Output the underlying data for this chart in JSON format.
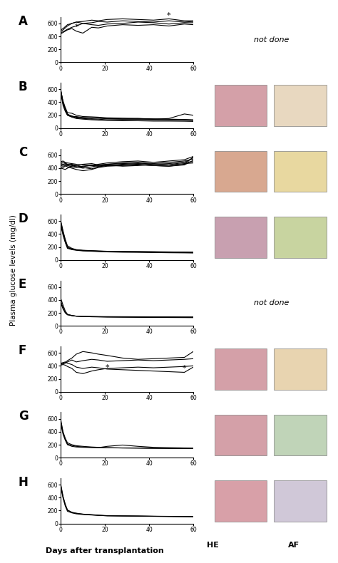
{
  "panels": [
    "A",
    "B",
    "C",
    "D",
    "E",
    "F",
    "G",
    "H"
  ],
  "ylim": [
    0,
    700
  ],
  "yticks": [
    0,
    200,
    400,
    600
  ],
  "xlim": [
    0,
    60
  ],
  "xticks": [
    0,
    20,
    40,
    60
  ],
  "xlabel": "Days after transplantation",
  "ylabel": "Plasma glucose levels (mg/dl)",
  "not_done_panels": [
    "A",
    "E"
  ],
  "has_images": [
    "B",
    "C",
    "D",
    "F",
    "G",
    "H"
  ],
  "panel_data": {
    "A": {
      "lines": [
        [
          0,
          1,
          2,
          3,
          5,
          7,
          10,
          14,
          17,
          21,
          28,
          35,
          42,
          49,
          56,
          60
        ],
        [
          480,
          500,
          530,
          560,
          600,
          620,
          630,
          650,
          640,
          660,
          670,
          660,
          650,
          670,
          640,
          640
        ]
      ],
      "lines2": [
        [
          0,
          1,
          2,
          3,
          5,
          7,
          10,
          14,
          17,
          21,
          28,
          35,
          42,
          49,
          56,
          60
        ],
        [
          460,
          470,
          490,
          510,
          540,
          560,
          600,
          580,
          570,
          590,
          600,
          620,
          610,
          590,
          610,
          610
        ]
      ],
      "lines3": [
        [
          0,
          1,
          2,
          3,
          5,
          7,
          10,
          14,
          17,
          21,
          28,
          35,
          42,
          49,
          56,
          60
        ],
        [
          500,
          520,
          550,
          580,
          600,
          620,
          600,
          610,
          630,
          620,
          640,
          630,
          620,
          640,
          620,
          630
        ]
      ],
      "lines4": [
        [
          0,
          1,
          2,
          3,
          5,
          7,
          10,
          14,
          17,
          21,
          28,
          35,
          42,
          49,
          56,
          60
        ],
        [
          440,
          460,
          480,
          500,
          520,
          480,
          450,
          540,
          530,
          560,
          580,
          570,
          580,
          560,
          590,
          580
        ]
      ],
      "star1": [
        7,
        490
      ],
      "star2": [
        49,
        665
      ]
    },
    "B": {
      "lines": [
        [
          0,
          1,
          2,
          3,
          5,
          7,
          10,
          14,
          17,
          21,
          28,
          35,
          42,
          49,
          56,
          60
        ],
        [
          580,
          400,
          300,
          220,
          180,
          160,
          150,
          140,
          140,
          130,
          130,
          135,
          130,
          130,
          125,
          120
        ]
      ],
      "lines2": [
        [
          0,
          1,
          2,
          3,
          5,
          7,
          10,
          14,
          17,
          21,
          28,
          35,
          42,
          49,
          56,
          60
        ],
        [
          560,
          380,
          280,
          210,
          190,
          170,
          160,
          150,
          160,
          150,
          145,
          150,
          140,
          150,
          220,
          200
        ]
      ],
      "lines3": [
        [
          0,
          1,
          2,
          3,
          5,
          7,
          10,
          14,
          17,
          21,
          28,
          35,
          42,
          49,
          56,
          60
        ],
        [
          550,
          350,
          260,
          200,
          180,
          180,
          165,
          160,
          155,
          145,
          140,
          140,
          135,
          130,
          130,
          125
        ]
      ],
      "lines4": [
        [
          0,
          1,
          2,
          3,
          5,
          7,
          10,
          14,
          17,
          21,
          28,
          35,
          42,
          49,
          56,
          60
        ],
        [
          570,
          420,
          320,
          240,
          230,
          200,
          180,
          175,
          170,
          160,
          155,
          150,
          145,
          140,
          135,
          130
        ]
      ],
      "lines5": [
        [
          0,
          1,
          2,
          3,
          5,
          7,
          10,
          14,
          17,
          21,
          28,
          35,
          42,
          49,
          56,
          60
        ],
        [
          590,
          380,
          290,
          200,
          170,
          150,
          140,
          130,
          125,
          120,
          115,
          115,
          110,
          110,
          108,
          105
        ]
      ]
    },
    "C": {
      "lines": [
        [
          0,
          1,
          2,
          3,
          5,
          7,
          10,
          14,
          17,
          21,
          28,
          35,
          42,
          49,
          56,
          60
        ],
        [
          420,
          410,
          430,
          450,
          460,
          440,
          420,
          450,
          430,
          440,
          460,
          470,
          460,
          450,
          490,
          500
        ]
      ],
      "lines2": [
        [
          0,
          1,
          2,
          3,
          5,
          7,
          10,
          14,
          17,
          21,
          28,
          35,
          42,
          49,
          56,
          60
        ],
        [
          460,
          450,
          460,
          440,
          420,
          410,
          430,
          440,
          430,
          450,
          430,
          440,
          460,
          450,
          470,
          480
        ]
      ],
      "lines3": [
        [
          0,
          1,
          2,
          3,
          5,
          7,
          10,
          14,
          17,
          21,
          28,
          35,
          42,
          49,
          56,
          60
        ],
        [
          400,
          390,
          380,
          400,
          430,
          440,
          410,
          390,
          420,
          440,
          450,
          460,
          440,
          430,
          450,
          520
        ]
      ],
      "lines4": [
        [
          0,
          1,
          2,
          3,
          5,
          7,
          10,
          14,
          17,
          21,
          28,
          35,
          42,
          49,
          56,
          60
        ],
        [
          480,
          490,
          480,
          460,
          450,
          430,
          460,
          470,
          450,
          460,
          480,
          490,
          470,
          490,
          510,
          540
        ]
      ],
      "lines5": [
        [
          0,
          1,
          2,
          3,
          5,
          7,
          10,
          14,
          17,
          21,
          28,
          35,
          42,
          49,
          56,
          60
        ],
        [
          440,
          430,
          440,
          420,
          400,
          380,
          360,
          380,
          410,
          430,
          440,
          450,
          440,
          430,
          460,
          570
        ]
      ],
      "lines6": [
        [
          0,
          1,
          2,
          3,
          5,
          7,
          10,
          14,
          17,
          21,
          28,
          35,
          42,
          49,
          56,
          60
        ],
        [
          500,
          510,
          490,
          480,
          470,
          460,
          450,
          440,
          460,
          480,
          500,
          510,
          490,
          510,
          530,
          580
        ]
      ],
      "lines7": [
        [
          0,
          1,
          2,
          3,
          5,
          7,
          10,
          14,
          17,
          21,
          28,
          35,
          42,
          49,
          56,
          60
        ],
        [
          470,
          460,
          470,
          450,
          440,
          420,
          400,
          420,
          440,
          460,
          470,
          480,
          460,
          470,
          490,
          560
        ]
      ]
    },
    "D": {
      "lines": [
        [
          0,
          1,
          2,
          3,
          5,
          7,
          10,
          14,
          17,
          21,
          28,
          35,
          42,
          49,
          56,
          60
        ],
        [
          600,
          450,
          320,
          220,
          180,
          160,
          150,
          145,
          140,
          135,
          130,
          130,
          128,
          125,
          122,
          120
        ]
      ],
      "lines2": [
        [
          0,
          1,
          2,
          3,
          5,
          7,
          10,
          14,
          17,
          21,
          28,
          35,
          42,
          49,
          56,
          60
        ],
        [
          560,
          380,
          270,
          180,
          160,
          150,
          140,
          135,
          130,
          125,
          120,
          118,
          115,
          112,
          110,
          108
        ]
      ],
      "lines3": [
        [
          0,
          1,
          2,
          3,
          5,
          7,
          10,
          14,
          17,
          21,
          28,
          35,
          42,
          49,
          56,
          60
        ],
        [
          580,
          430,
          300,
          200,
          170,
          155,
          145,
          140,
          135,
          130,
          128,
          125,
          122,
          120,
          118,
          115
        ]
      ],
      "lines4": [
        [
          0,
          1,
          2,
          3,
          5,
          7,
          10,
          14,
          17,
          21,
          28,
          35,
          42,
          49,
          56,
          60
        ],
        [
          520,
          400,
          280,
          190,
          165,
          155,
          148,
          142,
          138,
          133,
          130,
          128,
          125,
          122,
          120,
          118
        ]
      ]
    },
    "E": {
      "lines": [
        [
          0,
          1,
          2,
          3,
          5,
          7,
          10,
          14,
          17,
          21,
          28,
          35,
          42,
          49,
          56,
          60
        ],
        [
          420,
          320,
          230,
          180,
          160,
          150,
          145,
          140,
          138,
          135,
          133,
          131,
          130,
          129,
          128,
          127
        ]
      ],
      "lines2": [
        [
          0,
          1,
          2,
          3,
          5,
          7,
          10,
          14,
          17,
          21,
          28,
          35,
          42,
          49,
          56,
          60
        ],
        [
          380,
          280,
          210,
          175,
          160,
          150,
          145,
          143,
          141,
          139,
          137,
          136,
          135,
          134,
          133,
          132
        ]
      ],
      "lines3": [
        [
          0,
          1,
          2,
          3,
          5,
          7,
          10,
          14,
          17,
          21,
          28,
          35,
          42,
          49,
          56,
          60
        ],
        [
          350,
          260,
          200,
          170,
          158,
          150,
          148,
          146,
          144,
          143,
          142,
          141,
          140,
          140,
          139,
          139
        ]
      ]
    },
    "F": {
      "lines": [
        [
          0,
          1,
          2,
          3,
          5,
          7,
          10,
          14,
          17,
          21,
          28,
          35,
          42,
          49,
          56,
          60
        ],
        [
          430,
          440,
          450,
          480,
          520,
          580,
          620,
          600,
          580,
          560,
          520,
          500,
          510,
          520,
          530,
          620
        ]
      ],
      "lines2": [
        [
          0,
          1,
          2,
          3,
          5,
          7,
          10,
          14,
          17,
          21,
          28,
          35,
          42,
          49,
          56,
          60
        ],
        [
          420,
          430,
          440,
          460,
          490,
          460,
          480,
          500,
          490,
          470,
          480,
          490,
          480,
          490,
          500,
          510
        ]
      ],
      "lines3": [
        [
          0,
          1,
          2,
          3,
          5,
          7,
          10,
          14,
          17,
          21,
          28,
          35,
          42,
          49,
          56,
          60
        ],
        [
          410,
          420,
          410,
          390,
          360,
          300,
          280,
          320,
          340,
          360,
          370,
          380,
          370,
          380,
          390,
          400
        ]
      ],
      "lines4": [
        [
          0,
          1,
          2,
          3,
          5,
          7,
          10,
          14,
          17,
          21,
          28,
          35,
          42,
          49,
          56,
          60
        ],
        [
          440,
          450,
          460,
          440,
          420,
          380,
          360,
          380,
          370,
          350,
          340,
          330,
          320,
          310,
          300,
          380
        ]
      ],
      "star1": [
        21,
        320
      ],
      "star2": [
        56,
        310
      ]
    },
    "G": {
      "lines": [
        [
          0,
          1,
          2,
          3,
          5,
          7,
          10,
          14,
          17,
          21,
          28,
          35,
          42,
          49,
          56,
          60
        ],
        [
          580,
          400,
          300,
          230,
          200,
          185,
          175,
          165,
          160,
          155,
          150,
          148,
          145,
          143,
          142,
          140
        ]
      ],
      "lines2": [
        [
          0,
          1,
          2,
          3,
          5,
          7,
          10,
          14,
          17,
          21,
          28,
          35,
          42,
          49,
          56,
          60
        ],
        [
          550,
          380,
          280,
          210,
          190,
          175,
          165,
          160,
          155,
          175,
          195,
          175,
          160,
          155,
          150,
          148
        ]
      ],
      "lines3": [
        [
          0,
          1,
          2,
          3,
          5,
          7,
          10,
          14,
          17,
          21,
          28,
          35,
          42,
          49,
          56,
          60
        ],
        [
          520,
          360,
          270,
          200,
          175,
          165,
          160,
          156,
          155,
          152,
          150,
          148,
          145,
          143,
          141,
          140
        ]
      ]
    },
    "H": {
      "lines": [
        [
          0,
          1,
          2,
          3,
          5,
          7,
          10,
          14,
          17,
          21,
          28,
          35,
          42,
          49,
          56,
          60
        ],
        [
          600,
          420,
          300,
          210,
          175,
          160,
          145,
          135,
          128,
          120,
          118,
          115,
          112,
          110,
          108,
          107
        ]
      ],
      "lines2": [
        [
          0,
          1,
          2,
          3,
          5,
          7,
          10,
          14,
          17,
          21,
          28,
          35,
          42,
          49,
          56,
          60
        ],
        [
          560,
          390,
          270,
          190,
          165,
          150,
          140,
          132,
          126,
          120,
          117,
          115,
          112,
          110,
          108,
          107
        ]
      ],
      "lines3": [
        [
          0,
          1,
          2,
          3,
          5,
          7,
          10,
          14,
          17,
          21,
          28,
          35,
          42,
          49,
          56,
          60
        ],
        [
          580,
          410,
          290,
          205,
          170,
          158,
          146,
          138,
          130,
          123,
          119,
          117,
          114,
          112,
          110,
          109
        ]
      ]
    }
  },
  "he_colors": {
    "B": [
      "#e8a0a8",
      "#d4748a"
    ],
    "C": [
      "#e8b090",
      "#d4a070"
    ],
    "D": [
      "#e8a0a8",
      "#c8d4a0"
    ],
    "F": [
      "#e8a0a8",
      "#d4b890"
    ],
    "G": [
      "#e8a0a8",
      "#c8d4b0"
    ],
    "H": [
      "#e8a0a8",
      "#c8c4d0"
    ]
  }
}
